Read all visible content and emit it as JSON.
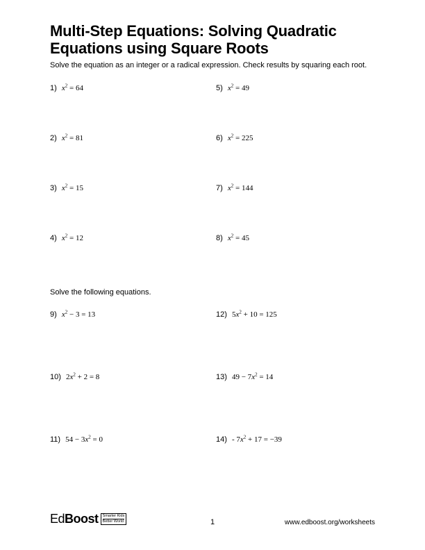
{
  "title": "Multi-Step Equations: Solving Quadratic Equations using Square Roots",
  "instructions": "Solve the equation as an integer or a radical expression. Check results by squaring each root.",
  "section1": {
    "left": [
      {
        "n": "1)",
        "pre": "",
        "var": "x",
        "post": " = 64"
      },
      {
        "n": "2)",
        "pre": "",
        "var": "x",
        "post": " = 81"
      },
      {
        "n": "3)",
        "pre": "",
        "var": "x",
        "post": " = 15"
      },
      {
        "n": "4)",
        "pre": "",
        "var": "x",
        "post": " = 12"
      }
    ],
    "right": [
      {
        "n": "5)",
        "pre": "",
        "var": "x",
        "post": " = 49"
      },
      {
        "n": "6)",
        "pre": "",
        "var": "x",
        "post": " = 225"
      },
      {
        "n": "7)",
        "pre": "",
        "var": "x",
        "post": " = 144"
      },
      {
        "n": "8)",
        "pre": "",
        "var": "x",
        "post": " = 45"
      }
    ]
  },
  "section2_label": "Solve the following equations.",
  "section2": {
    "left": [
      {
        "n": "9)",
        "pre": "",
        "var": "x",
        "post": " − 3 = 13"
      },
      {
        "n": "10)",
        "pre": "2",
        "var": "x",
        "post": " + 2 = 8"
      },
      {
        "n": "11)",
        "pre": "54 − 3",
        "var": "x",
        "post": " = 0"
      }
    ],
    "right": [
      {
        "n": "12)",
        "pre": "5",
        "var": "x",
        "post": " + 10 = 125"
      },
      {
        "n": "13)",
        "pre": "49 − 7",
        "var": "x",
        "post": " = 14"
      },
      {
        "n": "14)",
        "pre": "- 7",
        "var": "x",
        "post": " + 17 = −39"
      }
    ]
  },
  "footer": {
    "logo_ed": "Ed",
    "logo_boost": "Boost",
    "tag1": "Smarter Kids",
    "tag2": "Better World",
    "page": "1",
    "url": "www.edboost.org/worksheets"
  }
}
